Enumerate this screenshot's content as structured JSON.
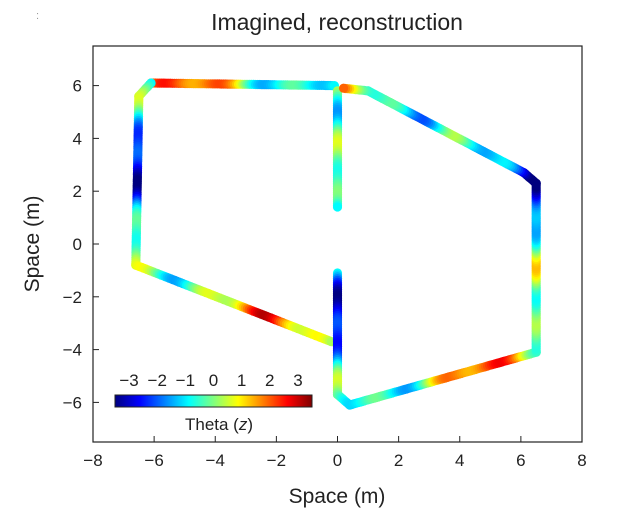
{
  "corner_mark": ":",
  "colors": {
    "colormap": "jet",
    "stops": [
      "#00007f",
      "#0000ff",
      "#007fff",
      "#00ffff",
      "#7fff7f",
      "#ffff00",
      "#ff7f00",
      "#ff0000",
      "#7f0000"
    ],
    "axis": "#222222"
  },
  "chart_data": {
    "type": "scatter",
    "title": "Imagined, reconstruction",
    "xlabel": "Space (m)",
    "ylabel": "Space (m)",
    "xlim": [
      -8,
      8
    ],
    "ylim": [
      -7.5,
      7.5
    ],
    "xticks": [
      -8,
      -6,
      -4,
      -2,
      0,
      2,
      4,
      6,
      8
    ],
    "yticks": [
      -6,
      -4,
      -2,
      0,
      2,
      4,
      6
    ],
    "grid": false,
    "colorbar": {
      "label": "Theta (z)",
      "label_main": "Theta (",
      "label_var": "z",
      "label_end": ")",
      "ticks": [
        -3,
        -2,
        -1,
        0,
        1,
        2,
        3
      ],
      "range": [
        -3.5,
        3.5
      ],
      "placement": "bottom-left, inside axes"
    },
    "series": [
      {
        "segments": [
          {
            "from": [
              -6.1,
              6.1
            ],
            "to": [
              -0.1,
              6.0
            ]
          },
          {
            "from": [
              -6.1,
              6.1
            ],
            "to": [
              -6.5,
              5.6
            ]
          },
          {
            "from": [
              -6.5,
              5.6
            ],
            "to": [
              -6.6,
              -0.8
            ]
          },
          {
            "from": [
              -6.6,
              -0.8
            ],
            "to": [
              -0.2,
              -3.7
            ]
          },
          {
            "from": [
              0.0,
              5.8
            ],
            "to": [
              0.0,
              1.4
            ]
          },
          {
            "from": [
              0.0,
              -1.1
            ],
            "to": [
              0.0,
              -5.7
            ]
          },
          {
            "from": [
              0.0,
              -5.7
            ],
            "to": [
              0.4,
              -6.1
            ]
          },
          {
            "from": [
              0.4,
              -6.1
            ],
            "to": [
              6.5,
              -4.1
            ]
          },
          {
            "from": [
              6.5,
              -4.1
            ],
            "to": [
              6.5,
              2.3
            ]
          },
          {
            "from": [
              6.5,
              2.3
            ],
            "to": [
              6.1,
              2.7
            ]
          },
          {
            "from": [
              6.1,
              2.7
            ],
            "to": [
              1.0,
              5.8
            ]
          },
          {
            "from": [
              1.0,
              5.8
            ],
            "to": [
              0.2,
              5.9
            ]
          }
        ]
      }
    ]
  }
}
